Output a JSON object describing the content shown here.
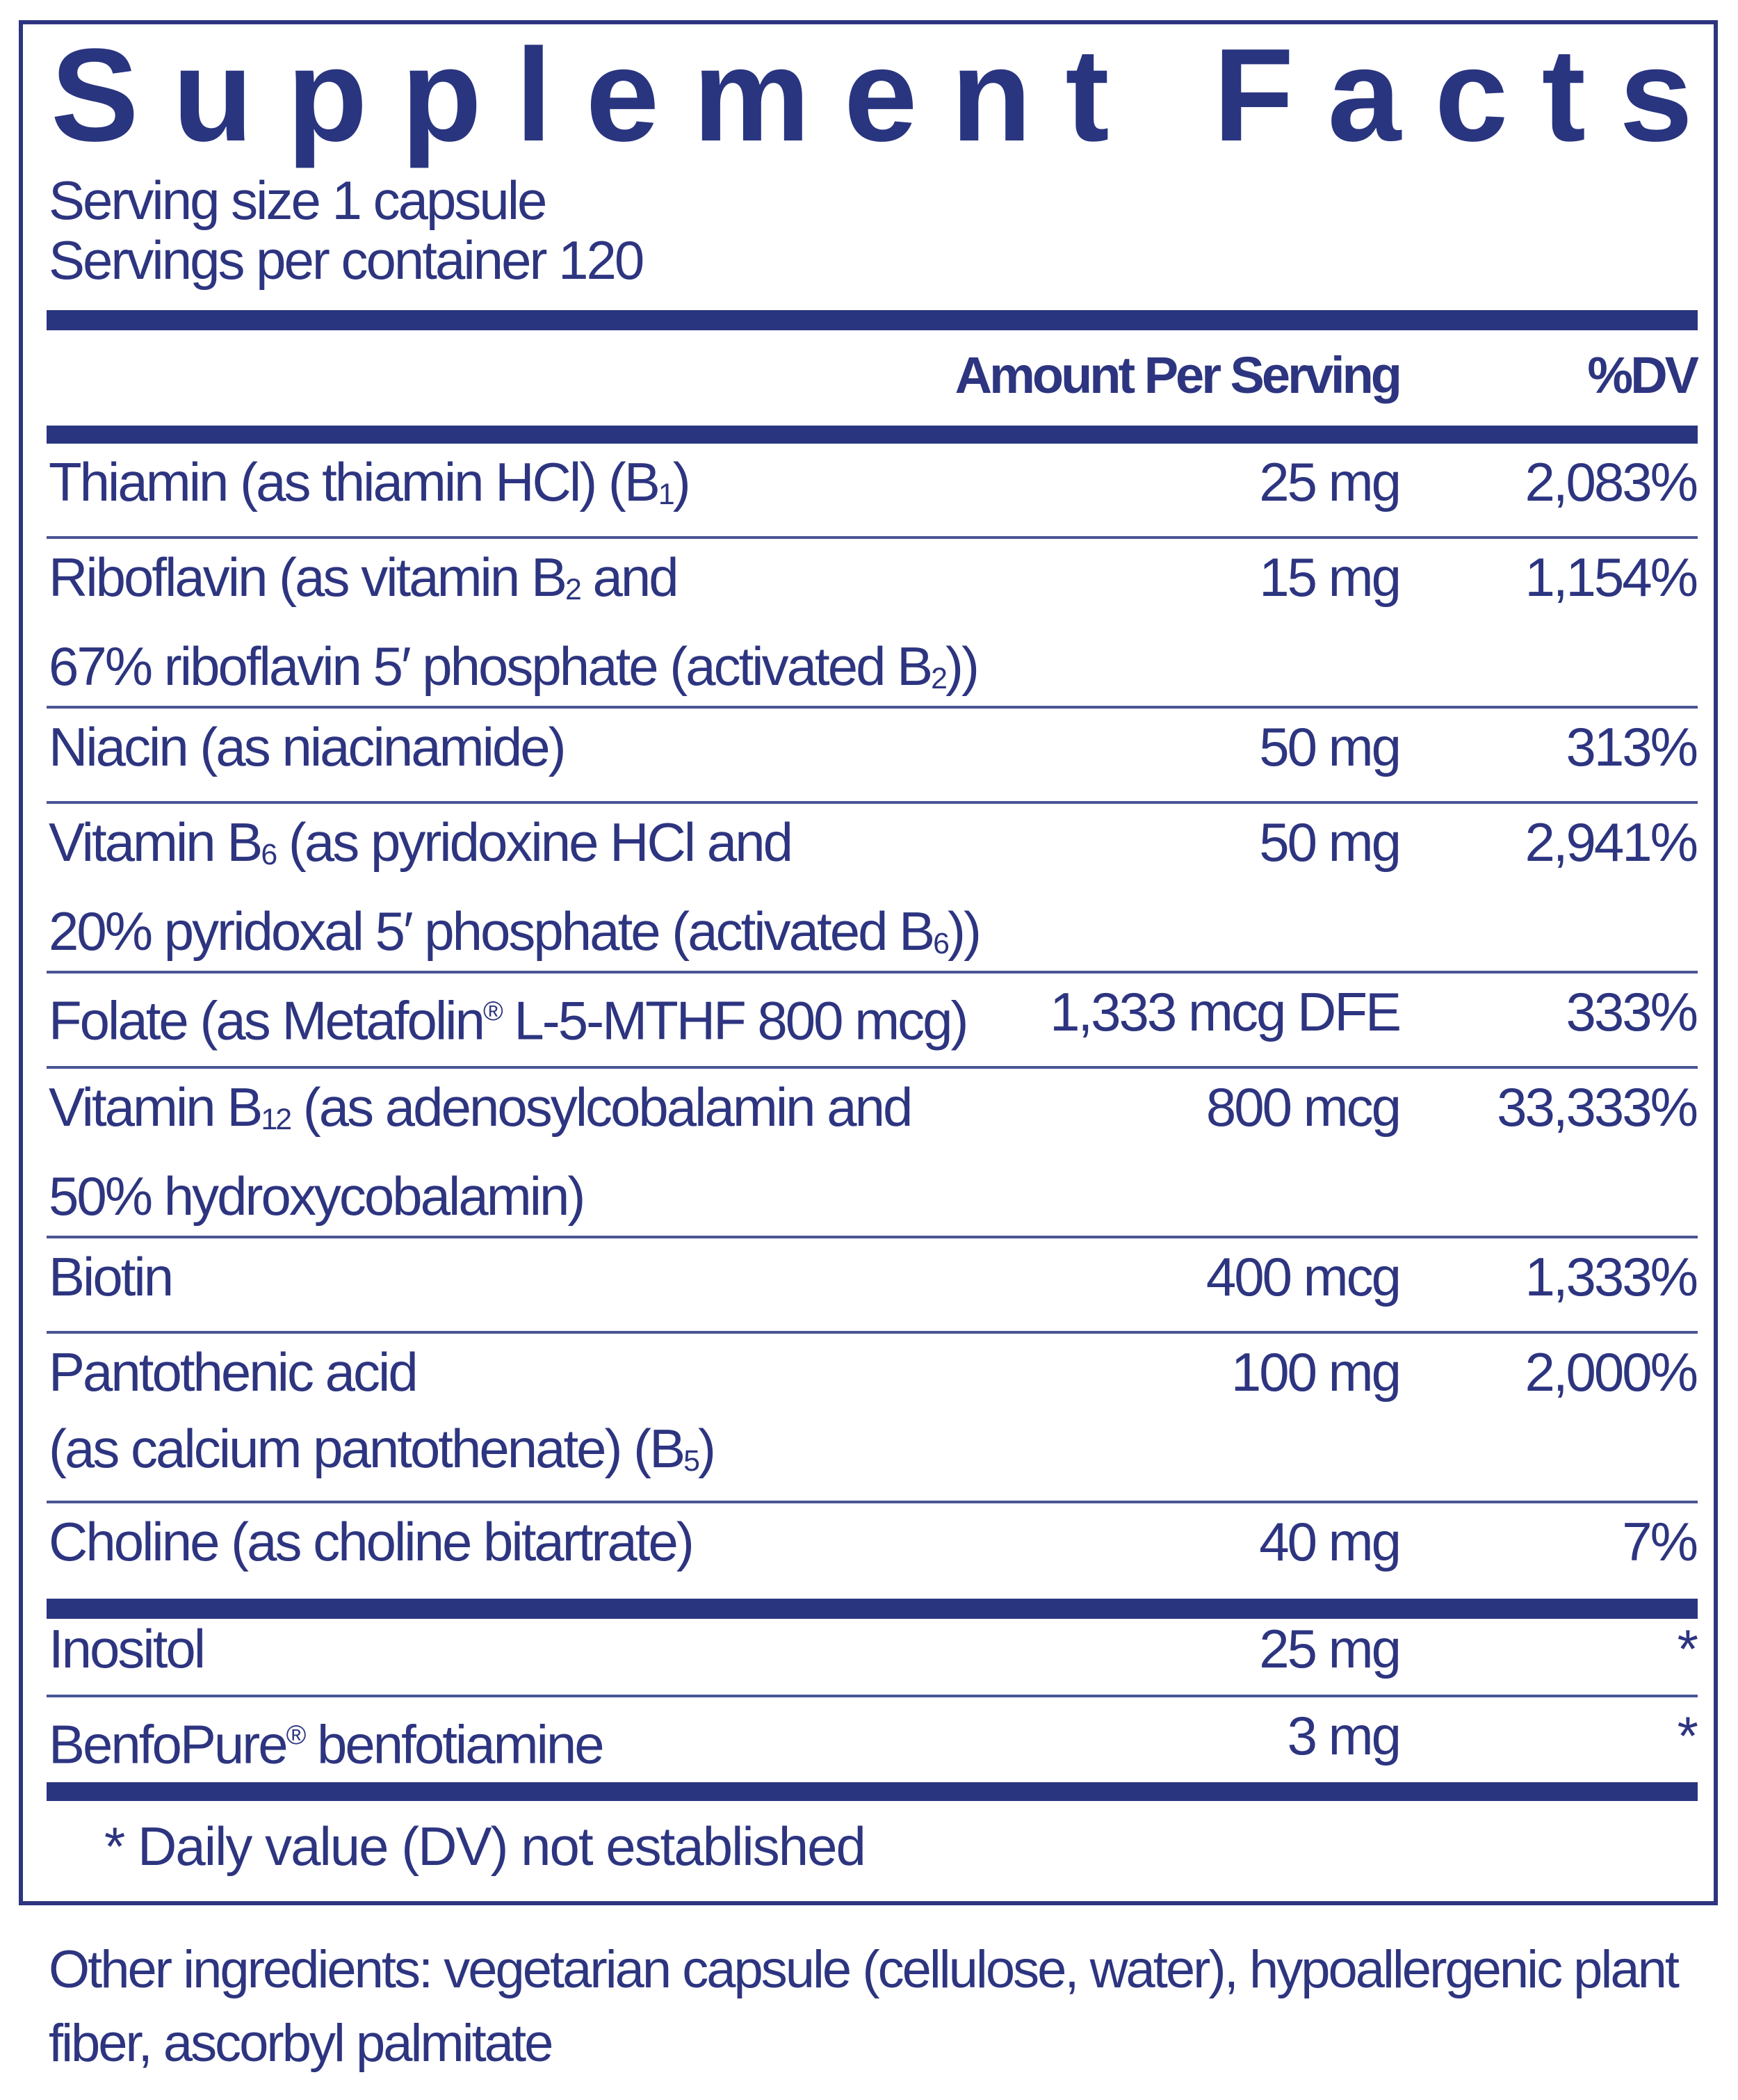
{
  "title": "Supplement Facts",
  "serving_size": "Serving size  1 capsule",
  "servings_per_container": "Servings per container  120",
  "header": {
    "amount": "Amount Per Serving",
    "dv": "%DV"
  },
  "colors": {
    "navy": "#2d3580",
    "rule": "#4a5594"
  },
  "rows": [
    {
      "lines": [
        [
          {
            "t": "Thiamin (as thiamin HCl) (B"
          },
          {
            "sub": "1"
          },
          {
            "t": ")"
          }
        ]
      ],
      "amount": "25 mg",
      "dv": "2,083%"
    },
    {
      "lines": [
        [
          {
            "t": "Riboflavin (as vitamin B"
          },
          {
            "sub": "2"
          },
          {
            "t": " and"
          }
        ],
        [
          {
            "t": "67% riboflavin 5′ phosphate (activated B"
          },
          {
            "sub": "2"
          },
          {
            "t": "))"
          }
        ]
      ],
      "amount": "15 mg",
      "dv": "1,154%"
    },
    {
      "lines": [
        [
          {
            "t": "Niacin (as niacinamide)"
          }
        ]
      ],
      "amount": "50 mg",
      "dv": "313%"
    },
    {
      "lines": [
        [
          {
            "t": "Vitamin B"
          },
          {
            "sub": "6"
          },
          {
            "t": " (as pyridoxine HCl and"
          }
        ],
        [
          {
            "t": "20% pyridoxal 5′ phosphate (activated B"
          },
          {
            "sub": "6"
          },
          {
            "t": "))"
          }
        ]
      ],
      "amount": "50 mg",
      "dv": "2,941%"
    },
    {
      "lines": [
        [
          {
            "t": "Folate (as Metafolin"
          },
          {
            "sup": "®"
          },
          {
            "t": " L-5-MTHF 800 mcg)"
          }
        ]
      ],
      "amount": "1,333 mcg DFE",
      "dv": "333%"
    },
    {
      "lines": [
        [
          {
            "t": "Vitamin B"
          },
          {
            "sub": "12"
          },
          {
            "t": " (as adenosylcobalamin and"
          }
        ],
        [
          {
            "t": "50% hydroxycobalamin)"
          }
        ]
      ],
      "amount": "800 mcg",
      "dv": "33,333%"
    },
    {
      "lines": [
        [
          {
            "t": "Biotin"
          }
        ]
      ],
      "amount": "400 mcg",
      "dv": "1,333%"
    },
    {
      "lines": [
        [
          {
            "t": "Pantothenic acid"
          }
        ],
        [
          {
            "t": "(as calcium pantothenate) (B"
          },
          {
            "sub": "5"
          },
          {
            "t": ")"
          }
        ]
      ],
      "amount": "100 mg",
      "dv": "2,000%"
    },
    {
      "lines": [
        [
          {
            "t": "Choline (as choline bitartrate)"
          }
        ]
      ],
      "amount": "40 mg",
      "dv": "7%"
    },
    {
      "lines": [
        [
          {
            "t": "Inositol"
          }
        ]
      ],
      "amount": "25 mg",
      "dv": "*"
    },
    {
      "lines": [
        [
          {
            "t": "BenfoPure"
          },
          {
            "sup": "®"
          },
          {
            "t": " benfotiamine"
          }
        ]
      ],
      "amount": "3 mg",
      "dv": "*"
    }
  ],
  "footnote": "* Daily value (DV) not established",
  "other_ingredients": "Other ingredients: vegetarian capsule (cellulose, water), hypoallergenic plant fiber, ascorbyl palmitate"
}
